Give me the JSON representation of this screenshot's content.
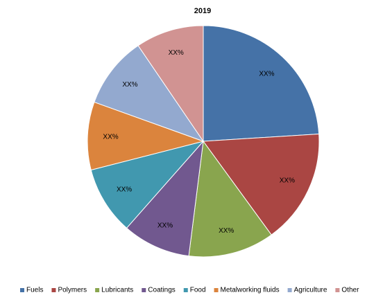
{
  "chart_data": {
    "type": "pie",
    "title": "2019",
    "categories": [
      "Fuels",
      "Polymers",
      "Lubricants",
      "Coatings",
      "Food",
      "Metalworking fluids",
      "Agriculture",
      "Other"
    ],
    "values": [
      24,
      16,
      12,
      9.5,
      9.5,
      9.5,
      10,
      9.5
    ],
    "value_labels": [
      "XX%",
      "XX%",
      "XX%",
      "XX%",
      "XX%",
      "XX%",
      "XX%",
      "XX%"
    ],
    "colors": [
      "#4572a7",
      "#aa4643",
      "#89a54e",
      "#71588f",
      "#4198af",
      "#db843d",
      "#93a9cf",
      "#d19392"
    ],
    "legend": "bottom"
  }
}
